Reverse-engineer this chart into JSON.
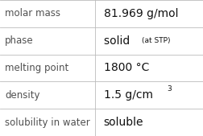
{
  "rows": [
    {
      "label": "molar mass",
      "value": "81.969 g/mol"
    },
    {
      "label": "phase",
      "value": "solid",
      "sub": "(at STP)"
    },
    {
      "label": "melting point",
      "value": "1800 °C"
    },
    {
      "label": "density",
      "value": "1.5 g/cm",
      "super": "3"
    },
    {
      "label": "solubility in water",
      "value": "soluble"
    }
  ],
  "col_split": 0.47,
  "bg_color": "#ffffff",
  "line_color": "#bbbbbb",
  "label_color": "#505050",
  "value_color": "#111111",
  "label_fontsize": 8.5,
  "value_fontsize": 10.0,
  "sub_fontsize": 6.5,
  "super_fontsize": 6.5,
  "font_family": "DejaVu Sans"
}
